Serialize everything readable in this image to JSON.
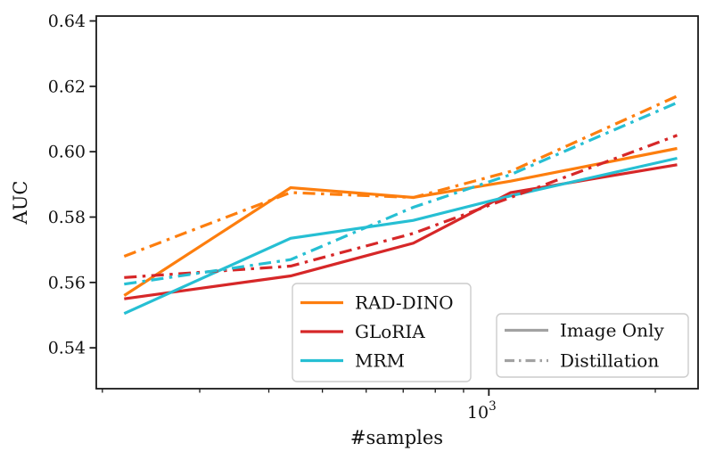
{
  "figure": {
    "type": "line-plot",
    "background": "#ffffff"
  },
  "chart_data": {
    "type": "line",
    "title": "",
    "xlabel": "#samples",
    "ylabel": "AUC",
    "x_scale": "log",
    "xlim": [
      195,
      2390
    ],
    "ylim": [
      0.5275,
      0.6415
    ],
    "grid": false,
    "x": [
      219,
      438,
      730,
      1095,
      2190
    ],
    "yticks": [
      0.54,
      0.56,
      0.58,
      0.6,
      0.62,
      0.64
    ],
    "ytick_labels": [
      "0.54",
      "0.56",
      "0.58",
      "0.60",
      "0.62",
      "0.64"
    ],
    "xticks_minor": [
      200,
      300,
      400,
      500,
      600,
      700,
      800,
      900,
      2000
    ],
    "xtick_major": {
      "value": 1000,
      "base": "10",
      "exp": "3"
    },
    "series": [
      {
        "name": "RAD-DINO",
        "style": "Image Only",
        "color": "#fd7e0e",
        "dash": "solid",
        "values": [
          0.556,
          0.589,
          0.586,
          0.591,
          0.601
        ]
      },
      {
        "name": "GLoRIA",
        "style": "Image Only",
        "color": "#d62728",
        "dash": "solid",
        "values": [
          0.555,
          0.562,
          0.572,
          0.5875,
          0.596
        ]
      },
      {
        "name": "MRM",
        "style": "Image Only",
        "color": "#26bfd3",
        "dash": "solid",
        "values": [
          0.5505,
          0.5735,
          0.579,
          0.5865,
          0.598
        ]
      },
      {
        "name": "GLoRIA",
        "style": "Distillation",
        "color": "#d62728",
        "dash": "dashdot",
        "values": [
          0.5615,
          0.565,
          0.575,
          0.586,
          0.605
        ]
      },
      {
        "name": "MRM",
        "style": "Distillation",
        "color": "#26bfd3",
        "dash": "dashdot",
        "values": [
          0.5595,
          0.567,
          0.583,
          0.593,
          0.615
        ]
      },
      {
        "name": "RAD-DINO",
        "style": "Distillation",
        "color": "#fd7e0e",
        "dash": "dashdot",
        "values": [
          0.568,
          0.5875,
          0.586,
          0.594,
          0.617
        ]
      }
    ],
    "legend_models": {
      "entries": [
        {
          "label": "RAD-DINO",
          "color": "#fd7e0e"
        },
        {
          "label": "GLoRIA",
          "color": "#d62728"
        },
        {
          "label": "MRM",
          "color": "#26bfd3"
        }
      ]
    },
    "legend_styles": {
      "sample_color": "#a2a2a2",
      "entries": [
        {
          "label": "Image Only",
          "dash": "solid"
        },
        {
          "label": "Distillation",
          "dash": "dashdot"
        }
      ]
    },
    "colors": {
      "spine": "#1a1a1a",
      "tick": "#1a1a1a",
      "legend_border": "#cccccc",
      "legend_background": "#ffffff"
    }
  }
}
